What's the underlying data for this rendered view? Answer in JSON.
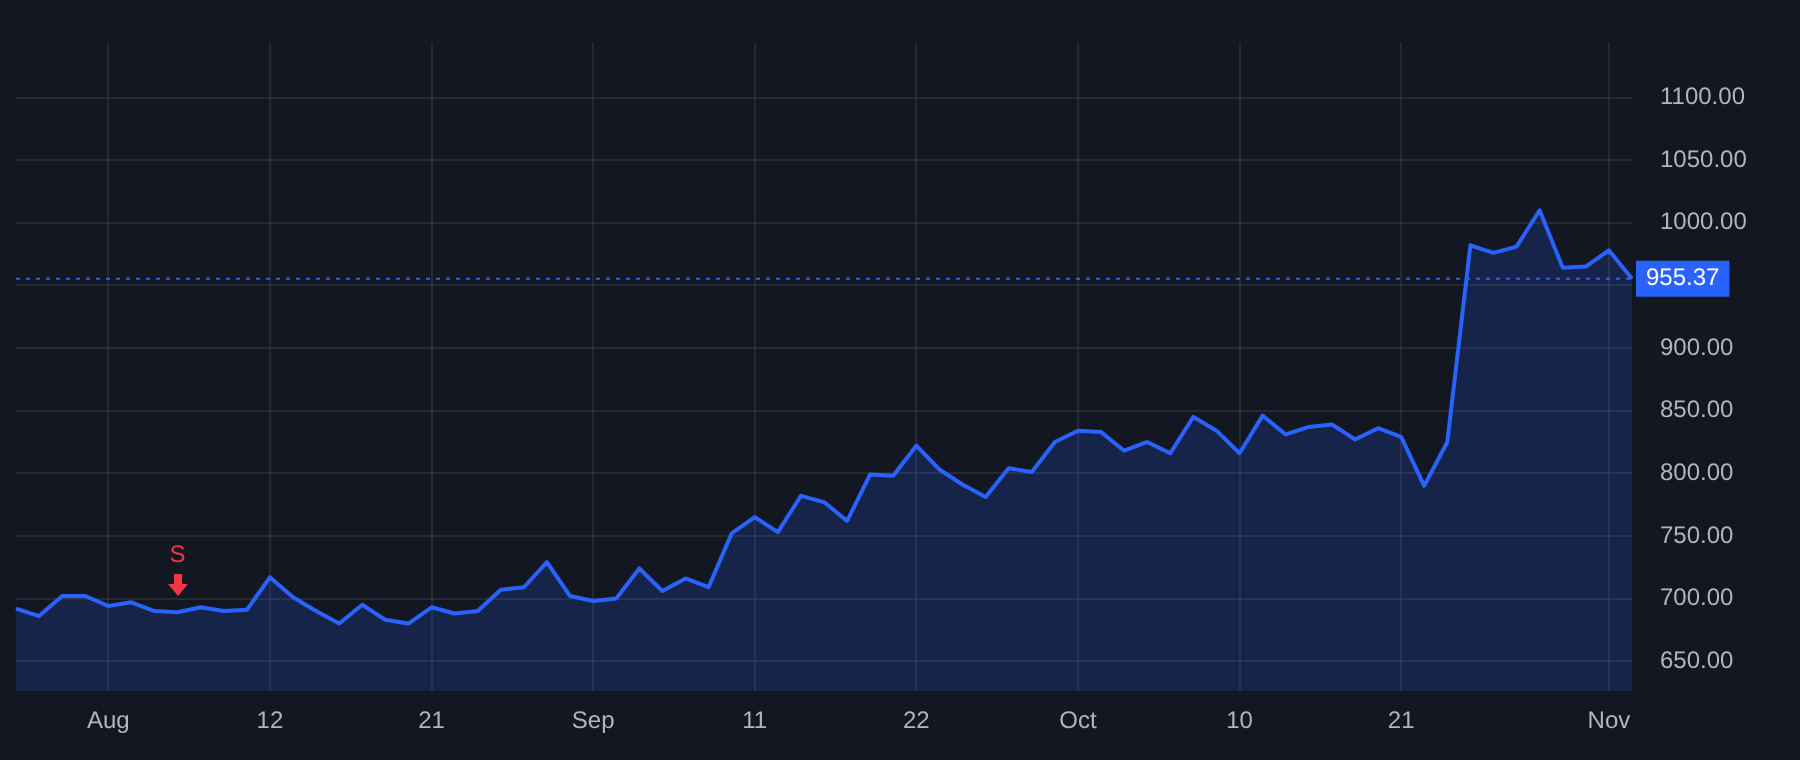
{
  "chart_data": {
    "type": "area",
    "categories": [
      null,
      null,
      null,
      null,
      "Aug",
      null,
      null,
      null,
      null,
      null,
      null,
      "12",
      null,
      null,
      null,
      null,
      null,
      null,
      "21",
      null,
      null,
      null,
      null,
      null,
      null,
      "Sep",
      null,
      null,
      null,
      null,
      null,
      null,
      "11",
      null,
      null,
      null,
      null,
      null,
      null,
      "22",
      null,
      null,
      null,
      null,
      null,
      null,
      "Oct",
      null,
      null,
      null,
      null,
      null,
      null,
      "10",
      null,
      null,
      null,
      null,
      null,
      null,
      "21",
      null,
      null,
      null,
      null,
      null,
      null,
      null,
      null,
      "Nov",
      null
    ],
    "series": [
      {
        "color": "#2962ff",
        "values": [
          692,
          686,
          702,
          702,
          694,
          697,
          690,
          689,
          693,
          690,
          691,
          717,
          701,
          690,
          680,
          695,
          683,
          680,
          693,
          688,
          690,
          707,
          709,
          729,
          702,
          698,
          700,
          724,
          706,
          716,
          709,
          752,
          765,
          753,
          782,
          777,
          762,
          799,
          798,
          822,
          803,
          791,
          781,
          804,
          801,
          825,
          834,
          833,
          818,
          825,
          816,
          845,
          834,
          816,
          846,
          831,
          837,
          839,
          827,
          836,
          829,
          790,
          825,
          982,
          976,
          981,
          1010,
          964,
          965,
          978,
          955.37
        ]
      }
    ],
    "ylim": [
      626,
      1144
    ],
    "yticks": [
      {
        "value": 650,
        "label": "650.00"
      },
      {
        "value": 700,
        "label": "700.00"
      },
      {
        "value": 750,
        "label": "750.00"
      },
      {
        "value": 800,
        "label": "800.00"
      },
      {
        "value": 850,
        "label": "850.00"
      },
      {
        "value": 900,
        "label": "900.00"
      },
      {
        "value": 950,
        "label": null
      },
      {
        "value": 1000,
        "label": "1000.00"
      },
      {
        "value": 1050,
        "label": "1050.00"
      },
      {
        "value": 1100,
        "label": "1100.00"
      }
    ],
    "ref_lines": [
      {
        "axis": "y",
        "value": 955.37,
        "label": "955.37",
        "color": "#2962ff",
        "line_style": "dotted"
      }
    ],
    "annotations": [
      "S"
    ],
    "grid": true,
    "legend": false,
    "marker": "none",
    "line_style": "solid"
  }
}
